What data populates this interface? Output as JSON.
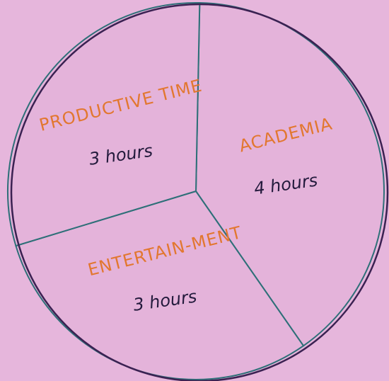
{
  "chart_data": {
    "type": "pie",
    "categories": [
      "ACADEMIA",
      "ENTERTAIN-MENT",
      "PRODUCTIVE TIME"
    ],
    "values": [
      4,
      3,
      3
    ],
    "value_labels": [
      "4 hours",
      "3 hours",
      "3 hours"
    ]
  }
}
